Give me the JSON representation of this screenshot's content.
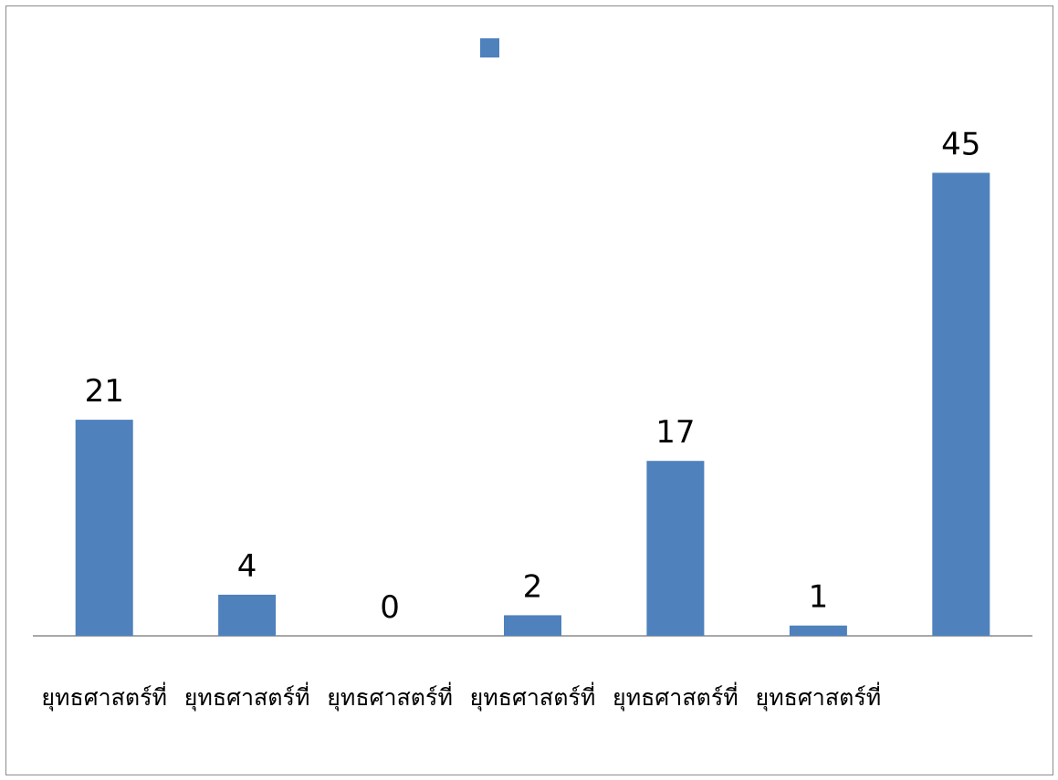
{
  "chart_data": {
    "type": "bar",
    "title": "",
    "legend": {
      "placement": "top-center",
      "entries": [
        {
          "name": "",
          "color": "#4f81bd"
        }
      ]
    },
    "categories": [
      "ยุทธศาสตร์ที่",
      "ยุทธศาสตร์ที่",
      "ยุทธศาสตร์ที่",
      "ยุทธศาสตร์ที่",
      "ยุทธศาสตร์ที่",
      "ยุทธศาสตร์ที่",
      ""
    ],
    "values": [
      21,
      4,
      0,
      2,
      17,
      1,
      45
    ],
    "data_labels": [
      "21",
      "4",
      "0",
      "2",
      "17",
      "1",
      "45"
    ],
    "series": [
      {
        "name": "",
        "values": [
          21,
          4,
          0,
          2,
          17,
          1,
          45
        ]
      }
    ],
    "xlabel": "",
    "ylabel": "",
    "ylim": [
      0,
      50
    ],
    "grid": false,
    "colors": {
      "bar": "#4f81bd",
      "axis": "#8c8c8c"
    }
  }
}
